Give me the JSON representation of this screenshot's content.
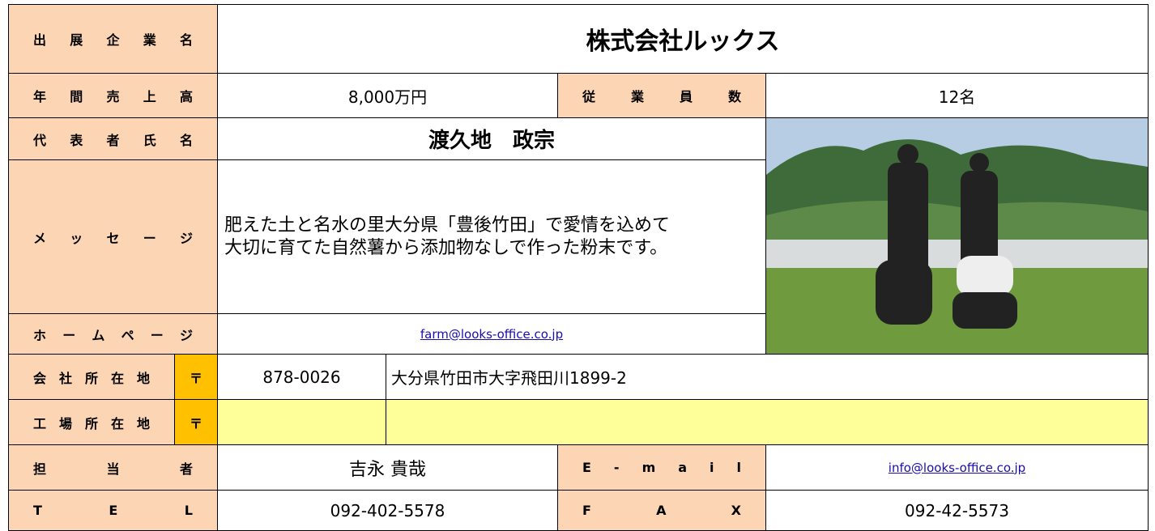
{
  "header": {
    "label": "出 展 企 業 名",
    "company": "株式会社ルックス"
  },
  "sales": {
    "label": "年 間 売 上 高",
    "value": "8,000万円"
  },
  "employees": {
    "label": "従 業 員 数",
    "value": "12名"
  },
  "representative": {
    "label": "代 表 者 氏 名",
    "value": "渡久地　政宗"
  },
  "message": {
    "label": "メ ッ セ ー ジ",
    "lines": [
      "肥えた土と名水の里大分県「豊後竹田」で愛情を込めて",
      "大切に育てた自然薯から添加物なしで作った粉末です。"
    ]
  },
  "homepage": {
    "label": "ホ ー ム ペ ー ジ",
    "value": "farm@looks-office.co.jp"
  },
  "office": {
    "label": "会 社 所 在 地",
    "postal_mark": "〒",
    "postal_code": "878-0026",
    "address": "大分県竹田市大字飛田川1899-2"
  },
  "factory": {
    "label": "工 場 所 在 地",
    "postal_mark": "〒"
  },
  "contact": {
    "label": "担 当 者",
    "value": "吉永 貴哉"
  },
  "email": {
    "label": "E - m a i l",
    "value": "info@looks-office.co.jp"
  },
  "tel": {
    "label": "T E L",
    "value": "092-402-5578"
  },
  "fax": {
    "label": "F A X",
    "value": "092-42-5573"
  }
}
